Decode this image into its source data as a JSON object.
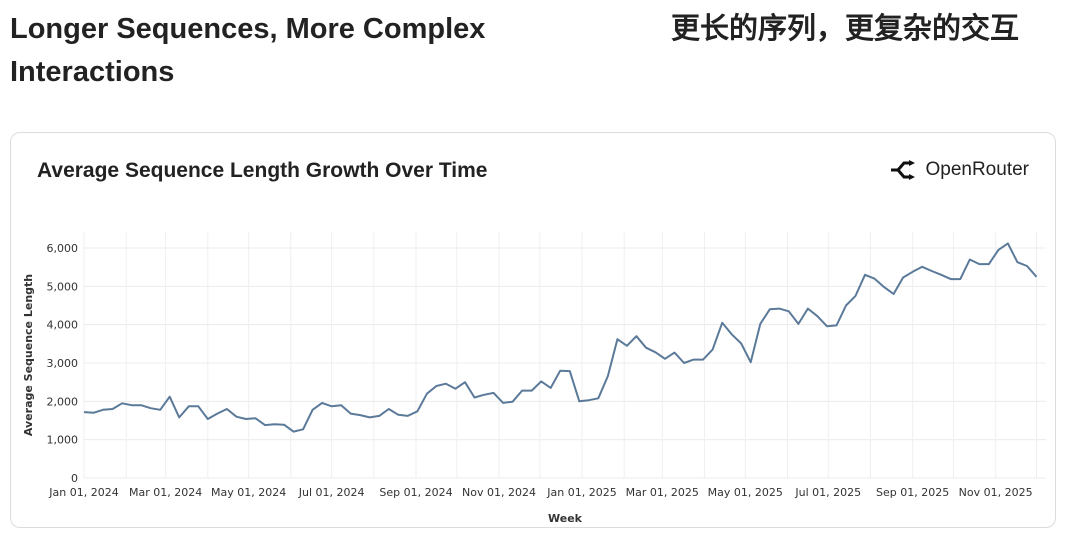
{
  "header": {
    "title_en": "Longer Sequences, More Complex Interactions",
    "title_zh": "更长的序列，更复杂的交互"
  },
  "card": {
    "brand": "OpenRouter",
    "brand_icon": "openrouter-logo-icon"
  },
  "chart_data": {
    "type": "line",
    "title": "Average Sequence Length Growth Over Time",
    "xlabel": "Week",
    "ylabel": "Average Sequence Length",
    "ylim": [
      0,
      6000
    ],
    "yticks": [
      0,
      1000,
      2000,
      3000,
      4000,
      5000,
      6000
    ],
    "ytick_labels": [
      "0",
      "1,000",
      "2,000",
      "3,000",
      "4,000",
      "5,000",
      "6,000"
    ],
    "xticks": [
      "2024-01-01",
      "2024-03-01",
      "2024-05-01",
      "2024-07-01",
      "2024-09-01",
      "2024-11-01",
      "2025-01-01",
      "2025-03-01",
      "2025-05-01",
      "2025-07-01",
      "2025-09-01",
      "2025-11-01"
    ],
    "xtick_labels": [
      "Jan 01, 2024",
      "Mar 01, 2024",
      "May 01, 2024",
      "Jul 01, 2024",
      "Sep 01, 2024",
      "Nov 01, 2024",
      "Jan 01, 2025",
      "Mar 01, 2025",
      "May 01, 2025",
      "Jul 01, 2025",
      "Sep 01, 2025",
      "Nov 01, 2025"
    ],
    "grid": true,
    "line_color": "#5b7a99",
    "x": [
      "2024-01-01",
      "2024-01-08",
      "2024-01-15",
      "2024-01-22",
      "2024-01-29",
      "2024-02-05",
      "2024-02-12",
      "2024-02-19",
      "2024-02-26",
      "2024-03-04",
      "2024-03-11",
      "2024-03-18",
      "2024-03-25",
      "2024-04-01",
      "2024-04-08",
      "2024-04-15",
      "2024-04-22",
      "2024-04-29",
      "2024-05-06",
      "2024-05-13",
      "2024-05-20",
      "2024-05-27",
      "2024-06-03",
      "2024-06-10",
      "2024-06-17",
      "2024-06-24",
      "2024-07-01",
      "2024-07-08",
      "2024-07-15",
      "2024-07-22",
      "2024-07-29",
      "2024-08-05",
      "2024-08-12",
      "2024-08-19",
      "2024-08-26",
      "2024-09-02",
      "2024-09-09",
      "2024-09-16",
      "2024-09-23",
      "2024-09-30",
      "2024-10-07",
      "2024-10-14",
      "2024-10-21",
      "2024-10-28",
      "2024-11-04",
      "2024-11-11",
      "2024-11-18",
      "2024-11-25",
      "2024-12-02",
      "2024-12-09",
      "2024-12-16",
      "2024-12-23",
      "2024-12-30",
      "2025-01-06",
      "2025-01-13",
      "2025-01-20",
      "2025-01-27",
      "2025-02-03",
      "2025-02-10",
      "2025-02-17",
      "2025-02-24",
      "2025-03-03",
      "2025-03-10",
      "2025-03-17",
      "2025-03-24",
      "2025-03-31",
      "2025-04-07",
      "2025-04-14",
      "2025-04-21",
      "2025-04-28",
      "2025-05-05",
      "2025-05-12",
      "2025-05-19",
      "2025-05-26",
      "2025-06-02",
      "2025-06-09",
      "2025-06-16",
      "2025-06-23",
      "2025-06-30",
      "2025-07-07",
      "2025-07-14",
      "2025-07-21",
      "2025-07-28",
      "2025-08-04",
      "2025-08-11",
      "2025-08-18",
      "2025-08-25",
      "2025-09-01",
      "2025-09-08",
      "2025-09-15",
      "2025-09-22",
      "2025-09-29",
      "2025-10-06",
      "2025-10-13",
      "2025-10-20",
      "2025-10-27",
      "2025-11-03",
      "2025-11-10",
      "2025-11-17",
      "2025-11-24",
      "2025-12-01"
    ],
    "values": [
      1720,
      1700,
      1780,
      1800,
      1950,
      1900,
      1900,
      1820,
      1780,
      2120,
      1580,
      1870,
      1870,
      1540,
      1680,
      1800,
      1600,
      1540,
      1560,
      1380,
      1400,
      1390,
      1210,
      1270,
      1780,
      1960,
      1870,
      1900,
      1680,
      1640,
      1580,
      1620,
      1800,
      1650,
      1620,
      1740,
      2200,
      2400,
      2460,
      2330,
      2500,
      2100,
      2170,
      2220,
      1960,
      1990,
      2280,
      2280,
      2520,
      2350,
      2800,
      2790,
      2000,
      2030,
      2080,
      2660,
      3620,
      3450,
      3700,
      3400,
      3280,
      3110,
      3270,
      3000,
      3090,
      3090,
      3350,
      4050,
      3750,
      3510,
      3020,
      4020,
      4400,
      4420,
      4350,
      4020,
      4420,
      4220,
      3960,
      3980,
      4500,
      4750,
      5300,
      5200,
      4980,
      4800,
      5230,
      5380,
      5510,
      5400,
      5300,
      5190,
      5190,
      5700,
      5580,
      5580,
      5950,
      6120,
      5630,
      5530,
      5250
    ]
  }
}
